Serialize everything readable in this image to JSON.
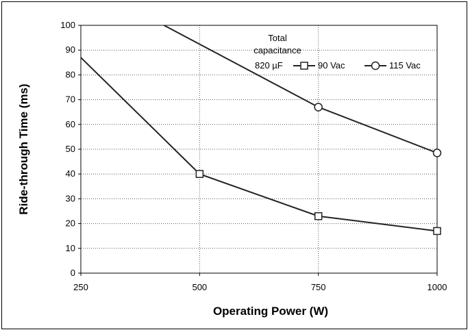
{
  "chart_data": {
    "type": "line",
    "xlabel": "Operating Power (W)",
    "ylabel": "Ride-through Time (ms)",
    "xlim": [
      250,
      1000
    ],
    "ylim": [
      0,
      100
    ],
    "x_ticks": [
      250,
      500,
      750,
      1000
    ],
    "y_ticks": [
      0,
      10,
      20,
      30,
      40,
      50,
      60,
      70,
      80,
      90,
      100
    ],
    "grid": "dotted",
    "legend": {
      "title_line1": "Total",
      "title_line2": "capacitance",
      "prefix": "820 µF",
      "placement": "top-right"
    },
    "series": [
      {
        "name": "90 Vac",
        "marker": "square",
        "color": "#222222",
        "x": [
          250,
          500,
          750,
          1000
        ],
        "y": [
          87,
          40,
          23,
          17
        ],
        "marked": [
          false,
          true,
          true,
          true
        ]
      },
      {
        "name": "115 Vac",
        "marker": "circle",
        "color": "#222222",
        "x": [
          425,
          750,
          1000
        ],
        "y": [
          100,
          67,
          48.5
        ],
        "marked": [
          false,
          true,
          true
        ]
      }
    ]
  }
}
